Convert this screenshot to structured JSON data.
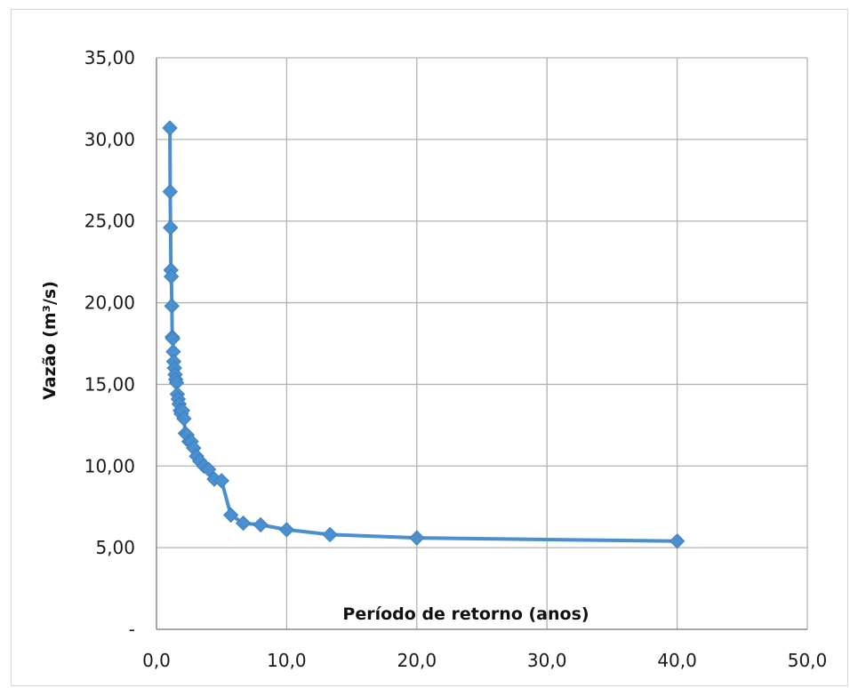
{
  "chart_data": {
    "type": "line",
    "title": "",
    "xlabel": "Período de retorno (anos)",
    "ylabel": "Vazão (m³/s)",
    "xlim": [
      0,
      50
    ],
    "ylim": [
      0,
      35
    ],
    "x_ticks": [
      "0,0",
      "10,0",
      "20,0",
      "30,0",
      "40,0",
      "50,0"
    ],
    "y_ticks": [
      "-",
      "5,00",
      "10,00",
      "15,00",
      "20,00",
      "25,00",
      "30,00",
      "35,00"
    ],
    "grid": true,
    "marker": "diamond",
    "color": "#4a8fce",
    "series": [
      {
        "x": [
          1.03,
          1.05,
          1.08,
          1.11,
          1.14,
          1.18,
          1.21,
          1.25,
          1.29,
          1.33,
          1.38,
          1.43,
          1.48,
          1.54,
          1.6,
          1.67,
          1.74,
          1.82,
          1.9,
          2.0,
          2.11,
          2.22,
          2.35,
          2.5,
          2.67,
          2.86,
          3.08,
          3.33,
          3.64,
          4.0,
          4.44,
          5.0,
          5.71,
          6.67,
          8.0,
          10.0,
          13.33,
          20.0,
          40.0
        ],
        "y": [
          30.7,
          26.8,
          24.6,
          22.0,
          21.6,
          19.8,
          17.9,
          17.8,
          17.0,
          16.4,
          16.0,
          15.6,
          15.3,
          15.1,
          14.4,
          14.1,
          13.8,
          13.4,
          13.2,
          13.4,
          12.9,
          12.0,
          11.9,
          11.5,
          11.5,
          11.1,
          10.6,
          10.3,
          10.0,
          9.8,
          9.2,
          9.1,
          7.0,
          6.5,
          6.4,
          6.1,
          5.8,
          5.6,
          5.4
        ]
      }
    ]
  }
}
